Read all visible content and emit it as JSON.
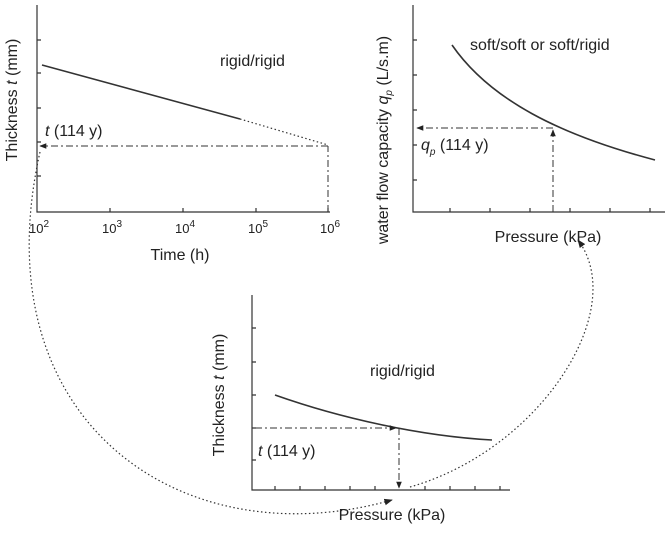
{
  "panels": [
    {
      "y_label": {
        "pre": "Thickness ",
        "sym": "t",
        "post": " (mm)"
      },
      "annotation": {
        "sym": "t",
        "post": " (114 y)"
      },
      "case_label": "rigid/rigid",
      "x_label": "Time (h)",
      "x_ticks": [
        {
          "base": "10",
          "exp": "2"
        },
        {
          "base": "10",
          "exp": "3"
        },
        {
          "base": "10",
          "exp": "4"
        },
        {
          "base": "10",
          "exp": "5"
        },
        {
          "base": "10",
          "exp": "6"
        }
      ]
    },
    {
      "y_label": {
        "pre": "water flow capacity ",
        "sym": "q",
        "sub": "p",
        "post": " (L/s.m)"
      },
      "annotation": {
        "sym": "q",
        "sub": "p",
        "post": " (114 y)"
      },
      "case_label": "soft/soft or soft/rigid",
      "x_label": "Pressure (kPa)"
    },
    {
      "y_label": {
        "pre": "Thickness ",
        "sym": "t",
        "post": " (mm)"
      },
      "annotation": {
        "sym": "t",
        "post": " (114 y)"
      },
      "case_label": "rigid/rigid",
      "x_label": "Pressure (kPa)"
    }
  ]
}
